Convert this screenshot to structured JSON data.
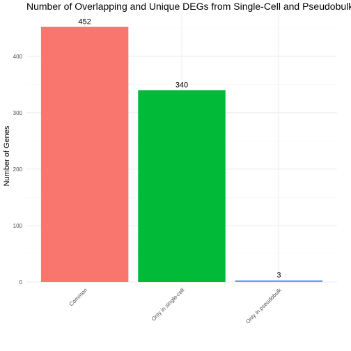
{
  "chart_data": {
    "type": "bar",
    "title": "Number of Overlapping and Unique DEGs from Single-Cell and Pseudobulk Tests",
    "xlabel": "",
    "ylabel": "Number of Genes",
    "categories": [
      "Common",
      "Only in single-cell",
      "Only in pseudobulk"
    ],
    "values": [
      452,
      340,
      3
    ],
    "data_labels": [
      "452",
      "340",
      "3"
    ],
    "colors": [
      "#F8766D",
      "#00BA38",
      "#619CFF"
    ],
    "ylim": [
      0,
      475
    ],
    "yticks": [
      0,
      100,
      200,
      300,
      400
    ],
    "ytick_labels": [
      "0",
      "100",
      "200",
      "300",
      "400"
    ],
    "grid": true,
    "legend": "none"
  }
}
